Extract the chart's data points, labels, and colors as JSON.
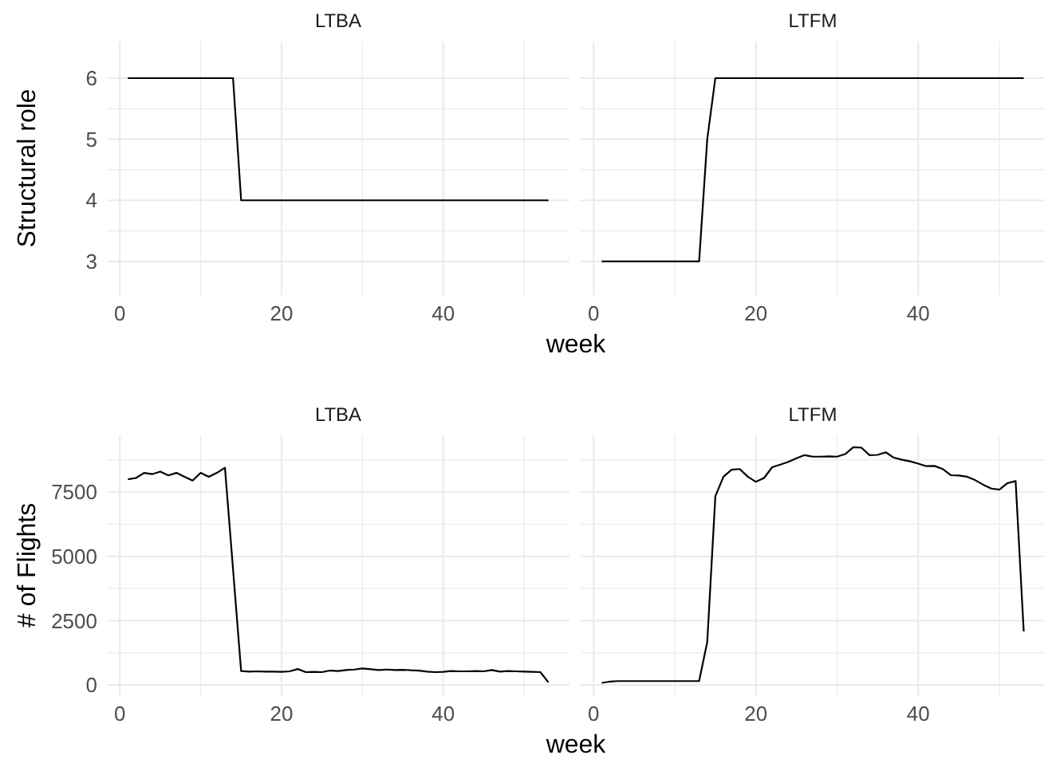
{
  "chart_data": [
    {
      "type": "line",
      "title": "LTBA",
      "ylabel": "Structural role",
      "xlabel": "week",
      "grid": true,
      "x": [
        1,
        14,
        15,
        53
      ],
      "series": [
        {
          "color": "#000000",
          "values": [
            6,
            6,
            4,
            4
          ]
        }
      ],
      "xlim": [
        -1.6,
        55.6
      ],
      "xticks": [
        0,
        {
          "value": 10,
          "label": null
        },
        20,
        {
          "value": 30,
          "label": null
        },
        40,
        {
          "value": 50,
          "label": null
        }
      ],
      "ylim": [
        2.45,
        6.6
      ],
      "yticks": [
        3,
        {
          "value": 3.5,
          "label": null
        },
        4,
        {
          "value": 4.5,
          "label": null
        },
        5,
        {
          "value": 5.5,
          "label": null
        },
        6
      ]
    },
    {
      "type": "line",
      "title": "LTFM",
      "grid": true,
      "tick_labels": "x",
      "x": [
        1,
        13,
        14,
        15,
        53
      ],
      "series": [
        {
          "color": "#000000",
          "values": [
            3,
            3,
            5,
            6,
            6
          ]
        }
      ],
      "xlim": [
        -1.6,
        55.6
      ],
      "xticks": [
        0,
        {
          "value": 10,
          "label": null
        },
        20,
        {
          "value": 30,
          "label": null
        },
        40,
        {
          "value": 50,
          "label": null
        }
      ],
      "ylim": [
        2.45,
        6.6
      ],
      "yticks": [
        3,
        {
          "value": 3.5,
          "label": null
        },
        4,
        {
          "value": 4.5,
          "label": null
        },
        5,
        {
          "value": 5.5,
          "label": null
        },
        6
      ]
    },
    {
      "type": "line",
      "title": "LTBA",
      "ylabel": "# of Flights",
      "xlabel": "week",
      "grid": true,
      "x": [
        1,
        2,
        3,
        4,
        5,
        6,
        7,
        8,
        9,
        10,
        11,
        12,
        13,
        14,
        15,
        16,
        17,
        18,
        19,
        20,
        21,
        22,
        23,
        24,
        25,
        26,
        27,
        28,
        29,
        30,
        31,
        32,
        33,
        34,
        35,
        36,
        37,
        38,
        39,
        40,
        41,
        42,
        43,
        44,
        45,
        46,
        47,
        48,
        49,
        50,
        51,
        52,
        53
      ],
      "series": [
        {
          "color": "#000000",
          "values": [
            8000,
            8050,
            8250,
            8200,
            8300,
            8150,
            8250,
            8100,
            7950,
            8250,
            8100,
            8250,
            8450,
            4500,
            540,
            520,
            530,
            520,
            520,
            510,
            530,
            620,
            500,
            510,
            500,
            560,
            540,
            580,
            600,
            640,
            610,
            580,
            600,
            580,
            590,
            570,
            560,
            520,
            500,
            510,
            540,
            530,
            530,
            540,
            530,
            580,
            520,
            540,
            530,
            520,
            510,
            500,
            100
          ]
        }
      ],
      "xlim": [
        -1.6,
        55.6
      ],
      "xticks": [
        0,
        {
          "value": 10,
          "label": null
        },
        20,
        {
          "value": 30,
          "label": null
        },
        40,
        {
          "value": 50,
          "label": null
        }
      ],
      "ylim": [
        -400,
        9710
      ],
      "yticks": [
        0,
        {
          "value": 1250,
          "label": null
        },
        2500,
        {
          "value": 3750,
          "label": null
        },
        5000,
        {
          "value": 6250,
          "label": null
        },
        7500,
        {
          "value": 8750,
          "label": null
        }
      ]
    },
    {
      "type": "line",
      "title": "LTFM",
      "grid": true,
      "tick_labels": "x",
      "x": [
        1,
        2,
        3,
        4,
        5,
        6,
        7,
        8,
        9,
        10,
        11,
        12,
        13,
        14,
        15,
        16,
        17,
        18,
        19,
        20,
        21,
        22,
        23,
        24,
        25,
        26,
        27,
        28,
        29,
        30,
        31,
        32,
        33,
        34,
        35,
        36,
        37,
        38,
        39,
        40,
        41,
        42,
        43,
        44,
        45,
        46,
        47,
        48,
        49,
        50,
        51,
        52,
        53
      ],
      "series": [
        {
          "color": "#000000",
          "values": [
            80,
            130,
            150,
            150,
            150,
            150,
            150,
            150,
            150,
            150,
            150,
            150,
            150,
            1670,
            7340,
            8100,
            8370,
            8400,
            8100,
            7900,
            8050,
            8470,
            8570,
            8680,
            8820,
            8940,
            8880,
            8880,
            8890,
            8880,
            8980,
            9250,
            9230,
            8940,
            8950,
            9050,
            8840,
            8760,
            8700,
            8610,
            8510,
            8520,
            8400,
            8160,
            8150,
            8100,
            7970,
            7790,
            7640,
            7600,
            7850,
            7930,
            2080
          ]
        }
      ],
      "xlim": [
        -1.6,
        55.6
      ],
      "xticks": [
        0,
        {
          "value": 10,
          "label": null
        },
        20,
        {
          "value": 30,
          "label": null
        },
        40,
        {
          "value": 50,
          "label": null
        }
      ],
      "ylim": [
        -400,
        9710
      ],
      "yticks": [
        0,
        {
          "value": 1250,
          "label": null
        },
        2500,
        {
          "value": 3750,
          "label": null
        },
        5000,
        {
          "value": 6250,
          "label": null
        },
        7500,
        {
          "value": 8750,
          "label": null
        }
      ]
    }
  ]
}
